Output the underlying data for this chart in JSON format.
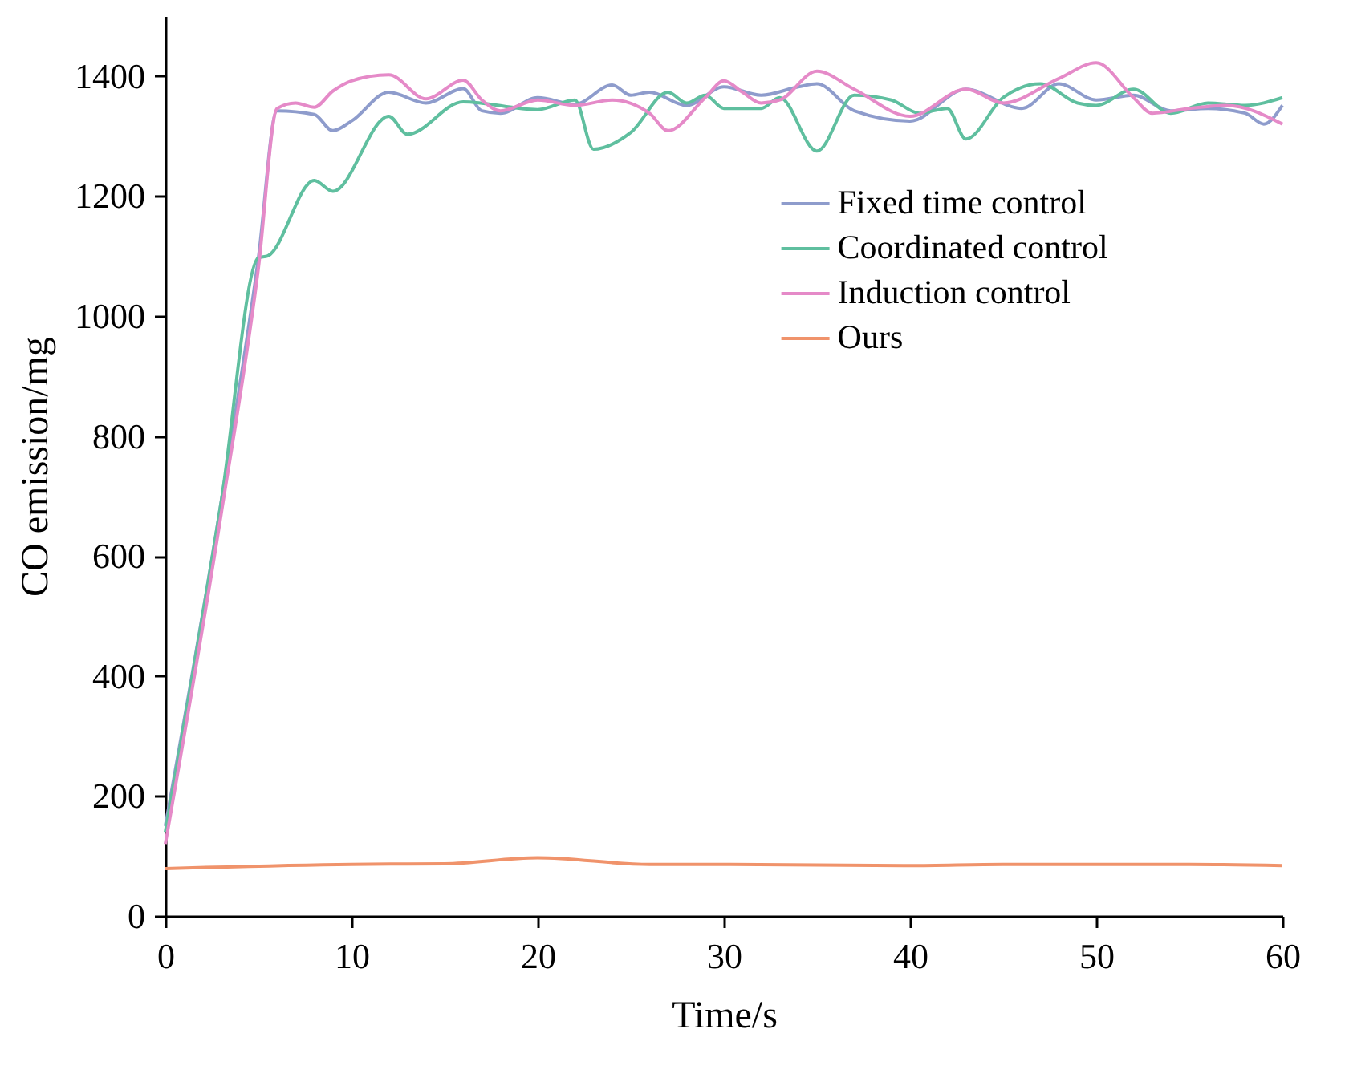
{
  "chart_data": {
    "type": "line",
    "xlabel": "Time/s",
    "ylabel": "CO emission/mg",
    "xlim": [
      0,
      60
    ],
    "ylim": [
      0,
      1500
    ],
    "xticks": [
      0,
      10,
      20,
      30,
      40,
      50,
      60
    ],
    "yticks": [
      0,
      200,
      400,
      600,
      800,
      1000,
      1200,
      1400
    ],
    "grid": false,
    "legend": "right",
    "marker": "none",
    "line_style": "solid",
    "series": [
      {
        "name": "Fixed time control",
        "color": "#8e9ccc",
        "x": [
          0,
          3,
          5,
          6,
          8,
          9,
          10,
          12,
          14,
          16,
          17,
          18,
          20,
          22,
          24,
          25,
          26,
          28,
          30,
          32,
          34,
          35,
          37,
          40,
          43,
          46,
          48,
          50,
          52,
          54,
          56,
          58,
          59,
          60
        ],
        "values": [
          150,
          690,
          1097,
          1342,
          1336,
          1309,
          1325,
          1373,
          1355,
          1379,
          1342,
          1338,
          1364,
          1353,
          1385,
          1368,
          1373,
          1351,
          1382,
          1368,
          1382,
          1387,
          1342,
          1325,
          1378,
          1346,
          1387,
          1360,
          1368,
          1342,
          1346,
          1338,
          1320,
          1351
        ]
      },
      {
        "name": "Coordinated control",
        "color": "#5fbf9f",
        "x": [
          0,
          3,
          5,
          5.5,
          8,
          9,
          12,
          13,
          16,
          20,
          22,
          23,
          25,
          27,
          28,
          29,
          30,
          32,
          33,
          35,
          37,
          39,
          40.5,
          42,
          43,
          45,
          47,
          49,
          50,
          52,
          54,
          56,
          58,
          60
        ],
        "values": [
          140,
          690,
          1097,
          1100,
          1226,
          1208,
          1333,
          1303,
          1357,
          1344,
          1360,
          1278,
          1306,
          1373,
          1355,
          1368,
          1346,
          1346,
          1364,
          1275,
          1368,
          1360,
          1338,
          1346,
          1295,
          1364,
          1387,
          1355,
          1351,
          1378,
          1338,
          1355,
          1351,
          1364
        ]
      },
      {
        "name": "Induction control",
        "color": "#e58ac8",
        "x": [
          0,
          3,
          5,
          6,
          7,
          8,
          9,
          10,
          12,
          14,
          16,
          17,
          18,
          20,
          22,
          24,
          26,
          27,
          29,
          30,
          31,
          32,
          33,
          35,
          37,
          40,
          43,
          45,
          48,
          50,
          52,
          53,
          55,
          57,
          60
        ],
        "values": [
          120,
          670,
          1080,
          1346,
          1355,
          1348,
          1375,
          1392,
          1402,
          1362,
          1393,
          1360,
          1342,
          1360,
          1351,
          1360,
          1338,
          1309,
          1364,
          1392,
          1373,
          1355,
          1360,
          1408,
          1378,
          1333,
          1378,
          1355,
          1396,
          1422,
          1364,
          1338,
          1346,
          1351,
          1320
        ]
      },
      {
        "name": "Ours",
        "color": "#f0936b",
        "x": [
          0,
          10,
          15,
          20,
          26,
          30,
          40,
          45,
          55,
          60
        ],
        "values": [
          79,
          86,
          87,
          97,
          86,
          86,
          84,
          86,
          86,
          84
        ]
      }
    ]
  }
}
